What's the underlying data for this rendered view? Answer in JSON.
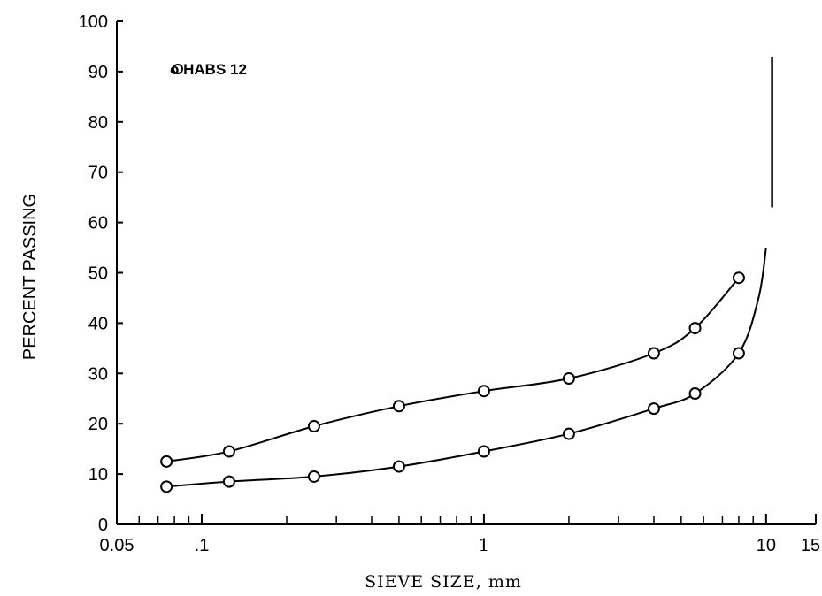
{
  "chart_data": {
    "type": "line",
    "title": "",
    "xlabel": "SIEVE SIZE, mm",
    "ylabel": "PERCENT PASSING",
    "xscale": "log",
    "xlim": [
      0.05,
      15
    ],
    "ylim": [
      0,
      100
    ],
    "grid": false,
    "legend": {
      "placement": "top-left",
      "entries": [
        {
          "marker": "circle",
          "label": "o HABS 12"
        }
      ]
    },
    "x_tick_labels": [
      {
        "value": 0.05,
        "label": "0.05"
      },
      {
        "value": 0.1,
        "label": ".1"
      },
      {
        "value": 1,
        "label": "1"
      },
      {
        "value": 10,
        "label": "10"
      },
      {
        "value": 15,
        "label": "15"
      }
    ],
    "y_tick_labels": [
      {
        "value": 0,
        "label": "0"
      },
      {
        "value": 10,
        "label": "10"
      },
      {
        "value": 20,
        "label": "20"
      },
      {
        "value": 30,
        "label": "30"
      },
      {
        "value": 40,
        "label": "40"
      },
      {
        "value": 50,
        "label": "50"
      },
      {
        "value": 60,
        "label": "60"
      },
      {
        "value": 70,
        "label": "70"
      },
      {
        "value": 80,
        "label": "80"
      },
      {
        "value": 90,
        "label": "90"
      },
      {
        "value": 100,
        "label": "100"
      }
    ],
    "x_minor_ticks": [
      0.06,
      0.07,
      0.08,
      0.09,
      0.2,
      0.3,
      0.4,
      0.5,
      0.6,
      0.7,
      0.8,
      0.9,
      2,
      3,
      4,
      5,
      6,
      7,
      8,
      9
    ],
    "series": [
      {
        "x": [
          0.075,
          0.125,
          0.25,
          0.5,
          1.0,
          2.0,
          4.0,
          5.6,
          8.0
        ],
        "y": [
          12.5,
          14.5,
          19.5,
          23.5,
          26.5,
          29.0,
          34.0,
          39.0,
          49.0
        ]
      },
      {
        "x": [
          0.075,
          0.125,
          0.25,
          0.5,
          1.0,
          2.0,
          4.0,
          5.6,
          8.0
        ],
        "y": [
          7.5,
          8.5,
          9.5,
          11.5,
          14.5,
          18.0,
          23.0,
          26.0,
          34.0
        ]
      }
    ],
    "curve_extension": {
      "x": [
        8.0,
        9.4,
        10.0
      ],
      "y": [
        34.0,
        45.0,
        55.0
      ]
    },
    "vertical_line": {
      "x": 10.5,
      "y_range": [
        63,
        93
      ]
    }
  }
}
